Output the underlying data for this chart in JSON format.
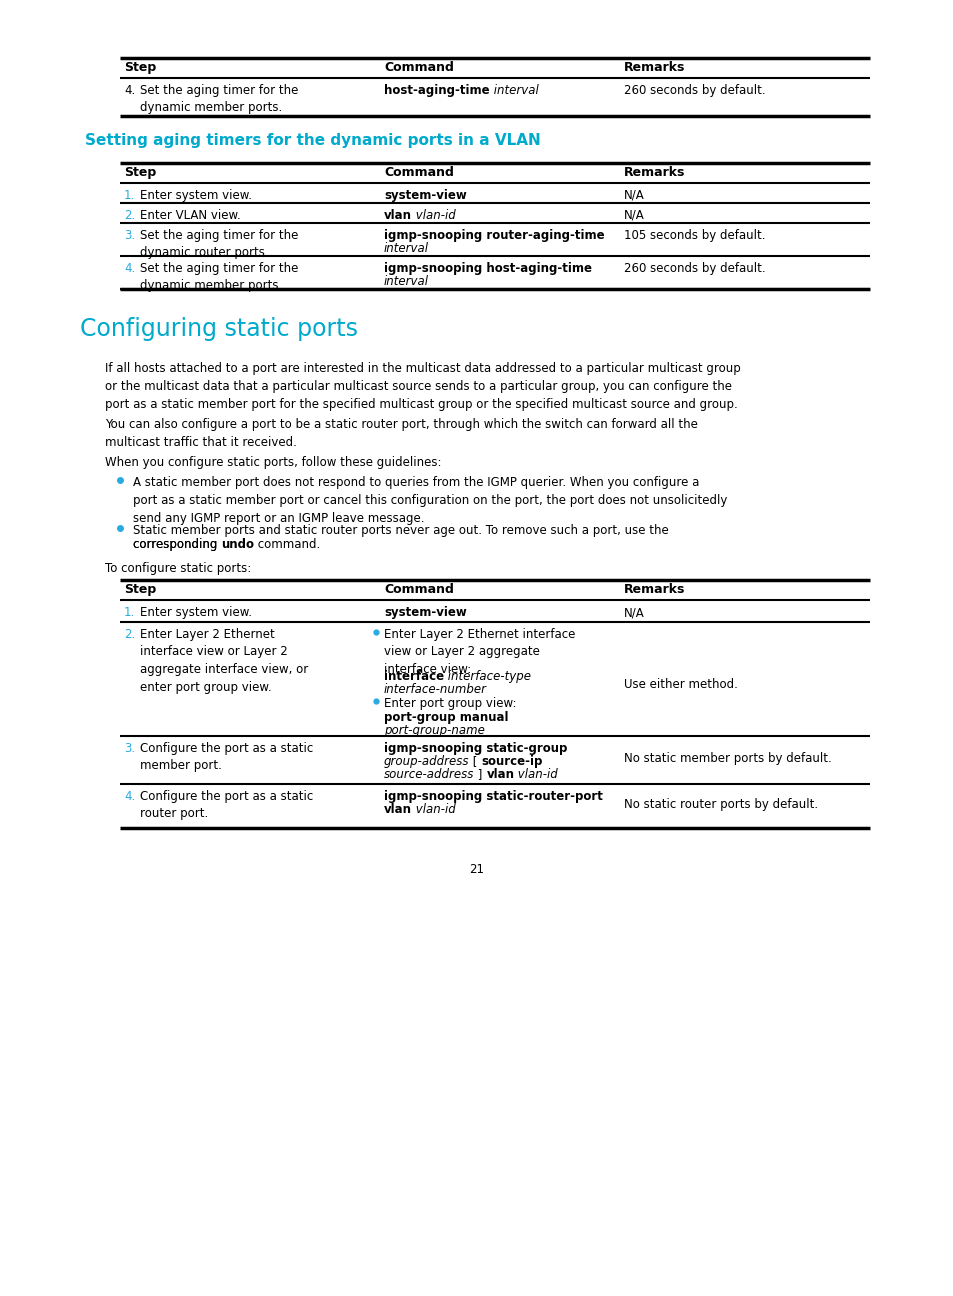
{
  "bg_color": "#ffffff",
  "text_color": "#000000",
  "cyan_color": "#00aacc",
  "page_number": "21",
  "table1": {
    "headers": [
      "Step",
      "Command",
      "Remarks"
    ],
    "rows": [
      {
        "step_num": "4.",
        "step_color": "#000000",
        "step_text": "Set the aging timer for the\ndynamic member ports.",
        "command": [
          [
            "host-aging-time",
            "bold"
          ],
          [
            " interval",
            "italic"
          ]
        ],
        "remarks": "260 seconds by default."
      }
    ]
  },
  "section2_title": "Setting aging timers for the dynamic ports in a VLAN",
  "table2": {
    "headers": [
      "Step",
      "Command",
      "Remarks"
    ],
    "rows": [
      {
        "step_num": "1.",
        "step_color": "#29abe2",
        "step_text": "Enter system view.",
        "command": [
          [
            "system-view",
            "bold"
          ]
        ],
        "remarks": "N/A"
      },
      {
        "step_num": "2.",
        "step_color": "#29abe2",
        "step_text": "Enter VLAN view.",
        "command": [
          [
            "vlan",
            "bold"
          ],
          [
            " vlan-id",
            "italic"
          ]
        ],
        "remarks": "N/A"
      },
      {
        "step_num": "3.",
        "step_color": "#29abe2",
        "step_text": "Set the aging timer for the\ndynamic router ports.",
        "command": [
          [
            "igmp-snooping router-aging-time",
            "bold"
          ],
          [
            "\ninterval",
            "italic"
          ]
        ],
        "remarks": "105 seconds by default."
      },
      {
        "step_num": "4.",
        "step_color": "#29abe2",
        "step_text": "Set the aging timer for the\ndynamic member ports.",
        "command": [
          [
            "igmp-snooping host-aging-time",
            "bold"
          ],
          [
            "\ninterval",
            "italic"
          ]
        ],
        "remarks": "260 seconds by default."
      }
    ]
  },
  "section3_title": "Configuring static ports",
  "para1": "If all hosts attached to a port are interested in the multicast data addressed to a particular multicast group\nor the multicast data that a particular multicast source sends to a particular group, you can configure the\nport as a static member port for the specified multicast group or the specified multicast source and group.",
  "para2": "You can also configure a port to be a static router port, through which the switch can forward all the\nmulticast traffic that it received.",
  "para3": "When you configure static ports, follow these guidelines:",
  "bullets": [
    "A static member port does not respond to queries from the IGMP querier. When you configure a\nport as a static member port or cancel this configuration on the port, the port does not unsolicitedly\nsend any IGMP report or an IGMP leave message.",
    "Static member ports and static router ports never age out. To remove such a port, use the\ncorresponding undo command."
  ],
  "bullet_undo_bold": "undo",
  "para4": "To configure static ports:",
  "table3": {
    "headers": [
      "Step",
      "Command",
      "Remarks"
    ],
    "rows": [
      {
        "step_num": "1.",
        "step_color": "#29abe2",
        "step_text": "Enter system view.",
        "command": [
          [
            "system-view",
            "bold"
          ]
        ],
        "remarks": "N/A"
      },
      {
        "step_num": "2.",
        "step_color": "#29abe2",
        "step_text": "Enter Layer 2 Ethernet\ninterface view or Layer 2\naggregate interface view, or\nenter port group view.",
        "command_bullets": [
          {
            "prefix": "Enter Layer 2 Ethernet interface\nview or Layer 2 aggregate\ninterface view:\n",
            "parts": [
              [
                "interface",
                "bold"
              ],
              [
                " interface-type\ninterface-number",
                "italic"
              ]
            ]
          },
          {
            "prefix": "Enter port group view:\n",
            "parts": [
              [
                "port-group manual\n",
                "bold"
              ],
              [
                "port-group-name",
                "italic"
              ]
            ]
          }
        ],
        "remarks": "Use either method."
      },
      {
        "step_num": "3.",
        "step_color": "#29abe2",
        "step_text": "Configure the port as a static\nmember port.",
        "command": [
          [
            "igmp-snooping static-group\n",
            "bold"
          ],
          [
            "group-address",
            "italic"
          ],
          [
            " [ ",
            "normal"
          ],
          [
            "source-ip\n",
            "bold"
          ],
          [
            "source-address",
            "italic"
          ],
          [
            " ] ",
            "normal"
          ],
          [
            "vlan",
            "bold"
          ],
          [
            " vlan-id",
            "italic"
          ]
        ],
        "remarks": "No static member ports by default."
      },
      {
        "step_num": "4.",
        "step_color": "#29abe2",
        "step_text": "Configure the port as a static\nrouter port.",
        "command": [
          [
            "igmp-snooping static-router-port\n",
            "bold"
          ],
          [
            "vlan",
            "bold"
          ],
          [
            " vlan-id",
            "italic"
          ]
        ],
        "remarks": "No static router ports by default."
      }
    ]
  }
}
